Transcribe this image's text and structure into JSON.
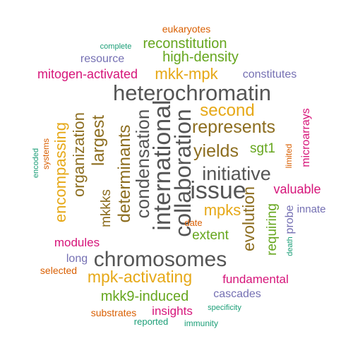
{
  "words": [
    {
      "text": "heterochromatin",
      "color": "#555555"
    },
    {
      "text": "chromosomes",
      "color": "#555555"
    },
    {
      "text": "issue",
      "color": "#555555"
    },
    {
      "text": "initiative",
      "color": "#555555"
    },
    {
      "text": "international",
      "color": "#555555"
    },
    {
      "text": "collaboration",
      "color": "#555555"
    },
    {
      "text": "condensation",
      "color": "#555555"
    },
    {
      "text": "determinants",
      "color": "#8c6d1f"
    },
    {
      "text": "organization",
      "color": "#8c6d1f"
    },
    {
      "text": "largest",
      "color": "#8c6d1f"
    },
    {
      "text": "represents",
      "color": "#8c6d1f"
    },
    {
      "text": "yields",
      "color": "#8c6d1f"
    },
    {
      "text": "evolution",
      "color": "#8c6d1f"
    },
    {
      "text": "mkkks",
      "color": "#8c6d1f"
    },
    {
      "text": "encompassing",
      "color": "#e6a817"
    },
    {
      "text": "second",
      "color": "#e6a817"
    },
    {
      "text": "mkk-mpk",
      "color": "#e6a817"
    },
    {
      "text": "mpks",
      "color": "#e6a817"
    },
    {
      "text": "mpk-activating",
      "color": "#e6a817"
    },
    {
      "text": "reconstitution",
      "color": "#66a61e"
    },
    {
      "text": "high-density",
      "color": "#66a61e"
    },
    {
      "text": "sgt1",
      "color": "#66a61e"
    },
    {
      "text": "extent",
      "color": "#66a61e"
    },
    {
      "text": "requiring",
      "color": "#66a61e"
    },
    {
      "text": "mkk9-induced",
      "color": "#66a61e"
    },
    {
      "text": "mitogen-activated",
      "color": "#d6157a"
    },
    {
      "text": "valuable",
      "color": "#d6157a"
    },
    {
      "text": "microarrays",
      "color": "#d6157a"
    },
    {
      "text": "modules",
      "color": "#d6157a"
    },
    {
      "text": "fundamental",
      "color": "#d6157a"
    },
    {
      "text": "insights",
      "color": "#d6157a"
    },
    {
      "text": "constitutes",
      "color": "#7570b3"
    },
    {
      "text": "resource",
      "color": "#7570b3"
    },
    {
      "text": "innate",
      "color": "#7570b3"
    },
    {
      "text": "probe",
      "color": "#7570b3"
    },
    {
      "text": "long",
      "color": "#7570b3"
    },
    {
      "text": "cascades",
      "color": "#7570b3"
    },
    {
      "text": "eukaryotes",
      "color": "#d95f02"
    },
    {
      "text": "date",
      "color": "#d95f02"
    },
    {
      "text": "limited",
      "color": "#d95f02"
    },
    {
      "text": "selected",
      "color": "#d95f02"
    },
    {
      "text": "substrates",
      "color": "#d95f02"
    },
    {
      "text": "systems",
      "color": "#d95f02"
    },
    {
      "text": "complete",
      "color": "#1b9e77"
    },
    {
      "text": "encoded",
      "color": "#1b9e77"
    },
    {
      "text": "death",
      "color": "#1b9e77"
    },
    {
      "text": "specificity",
      "color": "#1b9e77"
    },
    {
      "text": "reported",
      "color": "#1b9e77"
    },
    {
      "text": "immunity",
      "color": "#1b9e77"
    }
  ]
}
